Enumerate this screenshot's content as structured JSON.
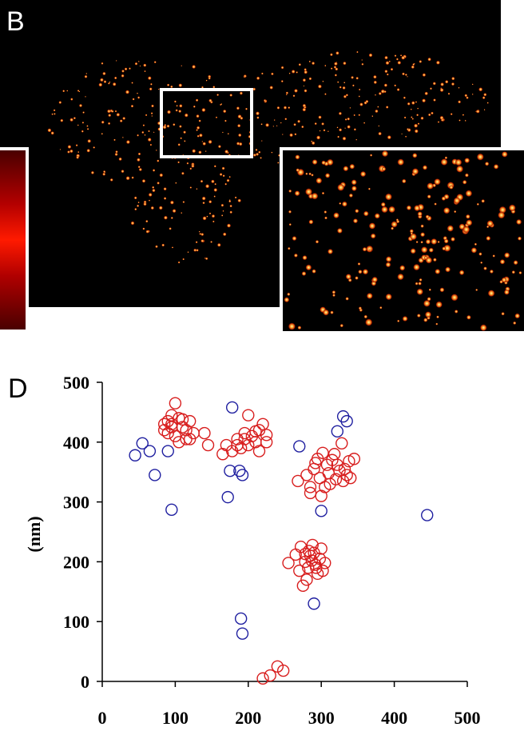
{
  "panels": {
    "b_label": "B",
    "d_label": "D"
  },
  "chart_data": {
    "type": "scatter",
    "title": "",
    "xlabel": "",
    "ylabel": "(nm)",
    "xlim": [
      0,
      500
    ],
    "ylim": [
      0,
      500
    ],
    "x_ticks": [
      0,
      100,
      200,
      300,
      400,
      500
    ],
    "y_ticks": [
      0,
      100,
      200,
      300,
      400,
      500
    ],
    "grid": false,
    "marker": "open-circle",
    "series": [
      {
        "color": "#d81e1e",
        "points": [
          [
            85,
            420
          ],
          [
            90,
            435
          ],
          [
            95,
            445
          ],
          [
            100,
            465
          ],
          [
            105,
            440
          ],
          [
            110,
            425
          ],
          [
            100,
            410
          ],
          [
            95,
            430
          ],
          [
            110,
            438
          ],
          [
            120,
            435
          ],
          [
            125,
            415
          ],
          [
            115,
            405
          ],
          [
            90,
            415
          ],
          [
            105,
            400
          ],
          [
            95,
            425
          ],
          [
            115,
            420
          ],
          [
            85,
            430
          ],
          [
            120,
            405
          ],
          [
            140,
            415
          ],
          [
            145,
            395
          ],
          [
            165,
            380
          ],
          [
            170,
            395
          ],
          [
            178,
            385
          ],
          [
            185,
            405
          ],
          [
            190,
            390
          ],
          [
            195,
            415
          ],
          [
            200,
            445
          ],
          [
            205,
            410
          ],
          [
            210,
            400
          ],
          [
            215,
            420
          ],
          [
            220,
            430
          ],
          [
            225,
            400
          ],
          [
            215,
            385
          ],
          [
            200,
            395
          ],
          [
            210,
            418
          ],
          [
            195,
            405
          ],
          [
            225,
            412
          ],
          [
            185,
            395
          ],
          [
            268,
            335
          ],
          [
            280,
            345
          ],
          [
            285,
            325
          ],
          [
            290,
            355
          ],
          [
            292,
            365
          ],
          [
            298,
            340
          ],
          [
            300,
            310
          ],
          [
            305,
            325
          ],
          [
            310,
            348
          ],
          [
            315,
            370
          ],
          [
            320,
            338
          ],
          [
            322,
            362
          ],
          [
            325,
            352
          ],
          [
            330,
            335
          ],
          [
            335,
            345
          ],
          [
            338,
            368
          ],
          [
            340,
            340
          ],
          [
            345,
            372
          ],
          [
            318,
            380
          ],
          [
            295,
            372
          ],
          [
            285,
            315
          ],
          [
            302,
            382
          ],
          [
            328,
            398
          ],
          [
            312,
            330
          ],
          [
            308,
            362
          ],
          [
            332,
            355
          ],
          [
            255,
            198
          ],
          [
            265,
            212
          ],
          [
            270,
            185
          ],
          [
            272,
            225
          ],
          [
            278,
            200
          ],
          [
            280,
            170
          ],
          [
            282,
            190
          ],
          [
            285,
            210
          ],
          [
            288,
            228
          ],
          [
            290,
            215
          ],
          [
            292,
            195
          ],
          [
            295,
            180
          ],
          [
            298,
            205
          ],
          [
            300,
            222
          ],
          [
            302,
            185
          ],
          [
            305,
            198
          ],
          [
            275,
            160
          ],
          [
            283,
            218
          ],
          [
            287,
            202
          ],
          [
            293,
            190
          ],
          [
            278,
            213
          ],
          [
            220,
            5
          ],
          [
            230,
            10
          ],
          [
            240,
            25
          ],
          [
            248,
            18
          ]
        ]
      },
      {
        "color": "#1f1fa0",
        "points": [
          [
            45,
            378
          ],
          [
            55,
            398
          ],
          [
            65,
            385
          ],
          [
            72,
            345
          ],
          [
            90,
            385
          ],
          [
            95,
            287
          ],
          [
            172,
            308
          ],
          [
            175,
            352
          ],
          [
            178,
            458
          ],
          [
            188,
            352
          ],
          [
            192,
            345
          ],
          [
            190,
            105
          ],
          [
            192,
            80
          ],
          [
            270,
            393
          ],
          [
            290,
            130
          ],
          [
            300,
            285
          ],
          [
            322,
            418
          ],
          [
            330,
            443
          ],
          [
            335,
            435
          ],
          [
            445,
            278
          ]
        ]
      }
    ]
  }
}
